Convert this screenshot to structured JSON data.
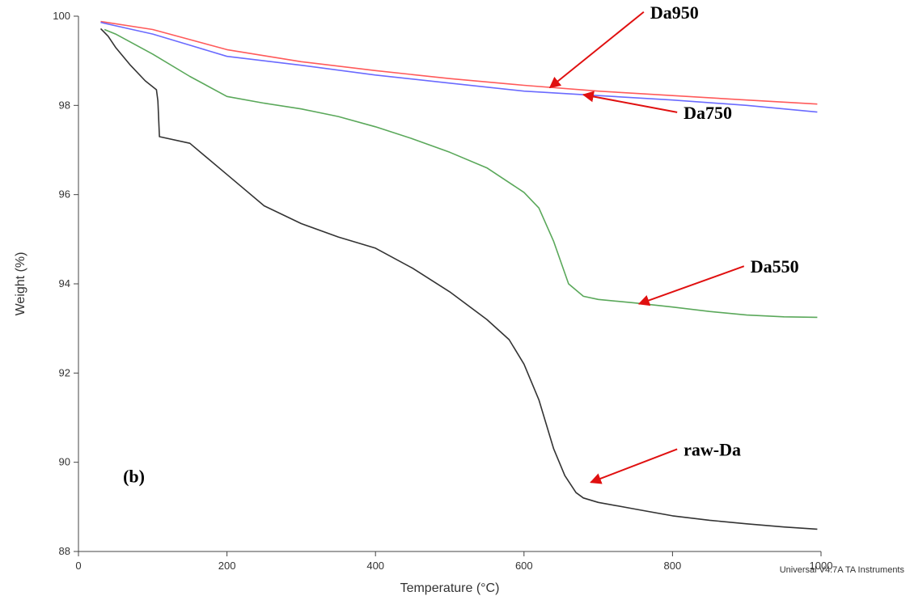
{
  "chart_data": {
    "type": "line",
    "xlabel": "Temperature (°C)",
    "ylabel": "Weight (%)",
    "xlim": [
      0,
      1000
    ],
    "ylim": [
      88,
      100
    ],
    "xticks": [
      0,
      200,
      400,
      600,
      800,
      1000
    ],
    "yticks": [
      88,
      90,
      92,
      94,
      96,
      98,
      100
    ],
    "grid": false,
    "panel_label": "(b)",
    "footer": "Universal V4.7A TA Instruments",
    "series": [
      {
        "name": "Da950",
        "color": "#ff5a5a",
        "x": [
          30,
          100,
          200,
          300,
          400,
          500,
          600,
          700,
          800,
          900,
          995
        ],
        "y": [
          99.88,
          99.7,
          99.25,
          98.98,
          98.78,
          98.6,
          98.45,
          98.32,
          98.22,
          98.12,
          98.03
        ]
      },
      {
        "name": "Da750",
        "color": "#6a6aff",
        "x": [
          30,
          100,
          150,
          200,
          300,
          400,
          500,
          600,
          700,
          800,
          900,
          995
        ],
        "y": [
          99.86,
          99.6,
          99.35,
          99.1,
          98.9,
          98.68,
          98.5,
          98.32,
          98.22,
          98.12,
          98.0,
          97.85
        ]
      },
      {
        "name": "Da550",
        "color": "#5aa85a",
        "x": [
          35,
          50,
          100,
          150,
          200,
          250,
          300,
          350,
          400,
          450,
          500,
          550,
          600,
          620,
          640,
          660,
          680,
          700,
          750,
          800,
          850,
          900,
          950,
          995
        ],
        "y": [
          99.7,
          99.6,
          99.15,
          98.65,
          98.2,
          98.05,
          97.92,
          97.75,
          97.52,
          97.25,
          96.95,
          96.6,
          96.05,
          95.7,
          94.95,
          94.0,
          93.72,
          93.65,
          93.57,
          93.48,
          93.38,
          93.3,
          93.26,
          93.25
        ]
      },
      {
        "name": "raw-Da",
        "color": "#333333",
        "x": [
          30,
          40,
          50,
          70,
          90,
          105,
          107,
          109,
          150,
          200,
          250,
          300,
          350,
          400,
          450,
          500,
          550,
          580,
          600,
          620,
          640,
          655,
          670,
          680,
          700,
          750,
          800,
          850,
          900,
          950,
          995
        ],
        "y": [
          99.72,
          99.55,
          99.3,
          98.9,
          98.55,
          98.35,
          98.1,
          97.3,
          97.15,
          96.45,
          95.75,
          95.35,
          95.05,
          94.8,
          94.35,
          93.82,
          93.2,
          92.75,
          92.2,
          91.4,
          90.3,
          89.7,
          89.32,
          89.2,
          89.1,
          88.95,
          88.8,
          88.7,
          88.62,
          88.55,
          88.5
        ]
      }
    ],
    "annotations": [
      {
        "text": "Da950",
        "series": "Da950",
        "text_at": [
          770,
          99.95
        ],
        "point_at": [
          635,
          98.4
        ]
      },
      {
        "text": "Da750",
        "series": "Da750",
        "text_at": [
          815,
          97.7
        ],
        "point_at": [
          680,
          98.24
        ]
      },
      {
        "text": "Da550",
        "series": "Da550",
        "text_at": [
          905,
          94.25
        ],
        "point_at": [
          755,
          93.55
        ]
      },
      {
        "text": "raw-Da",
        "series": "raw-Da",
        "text_at": [
          815,
          90.15
        ],
        "point_at": [
          690,
          89.55
        ]
      }
    ]
  }
}
